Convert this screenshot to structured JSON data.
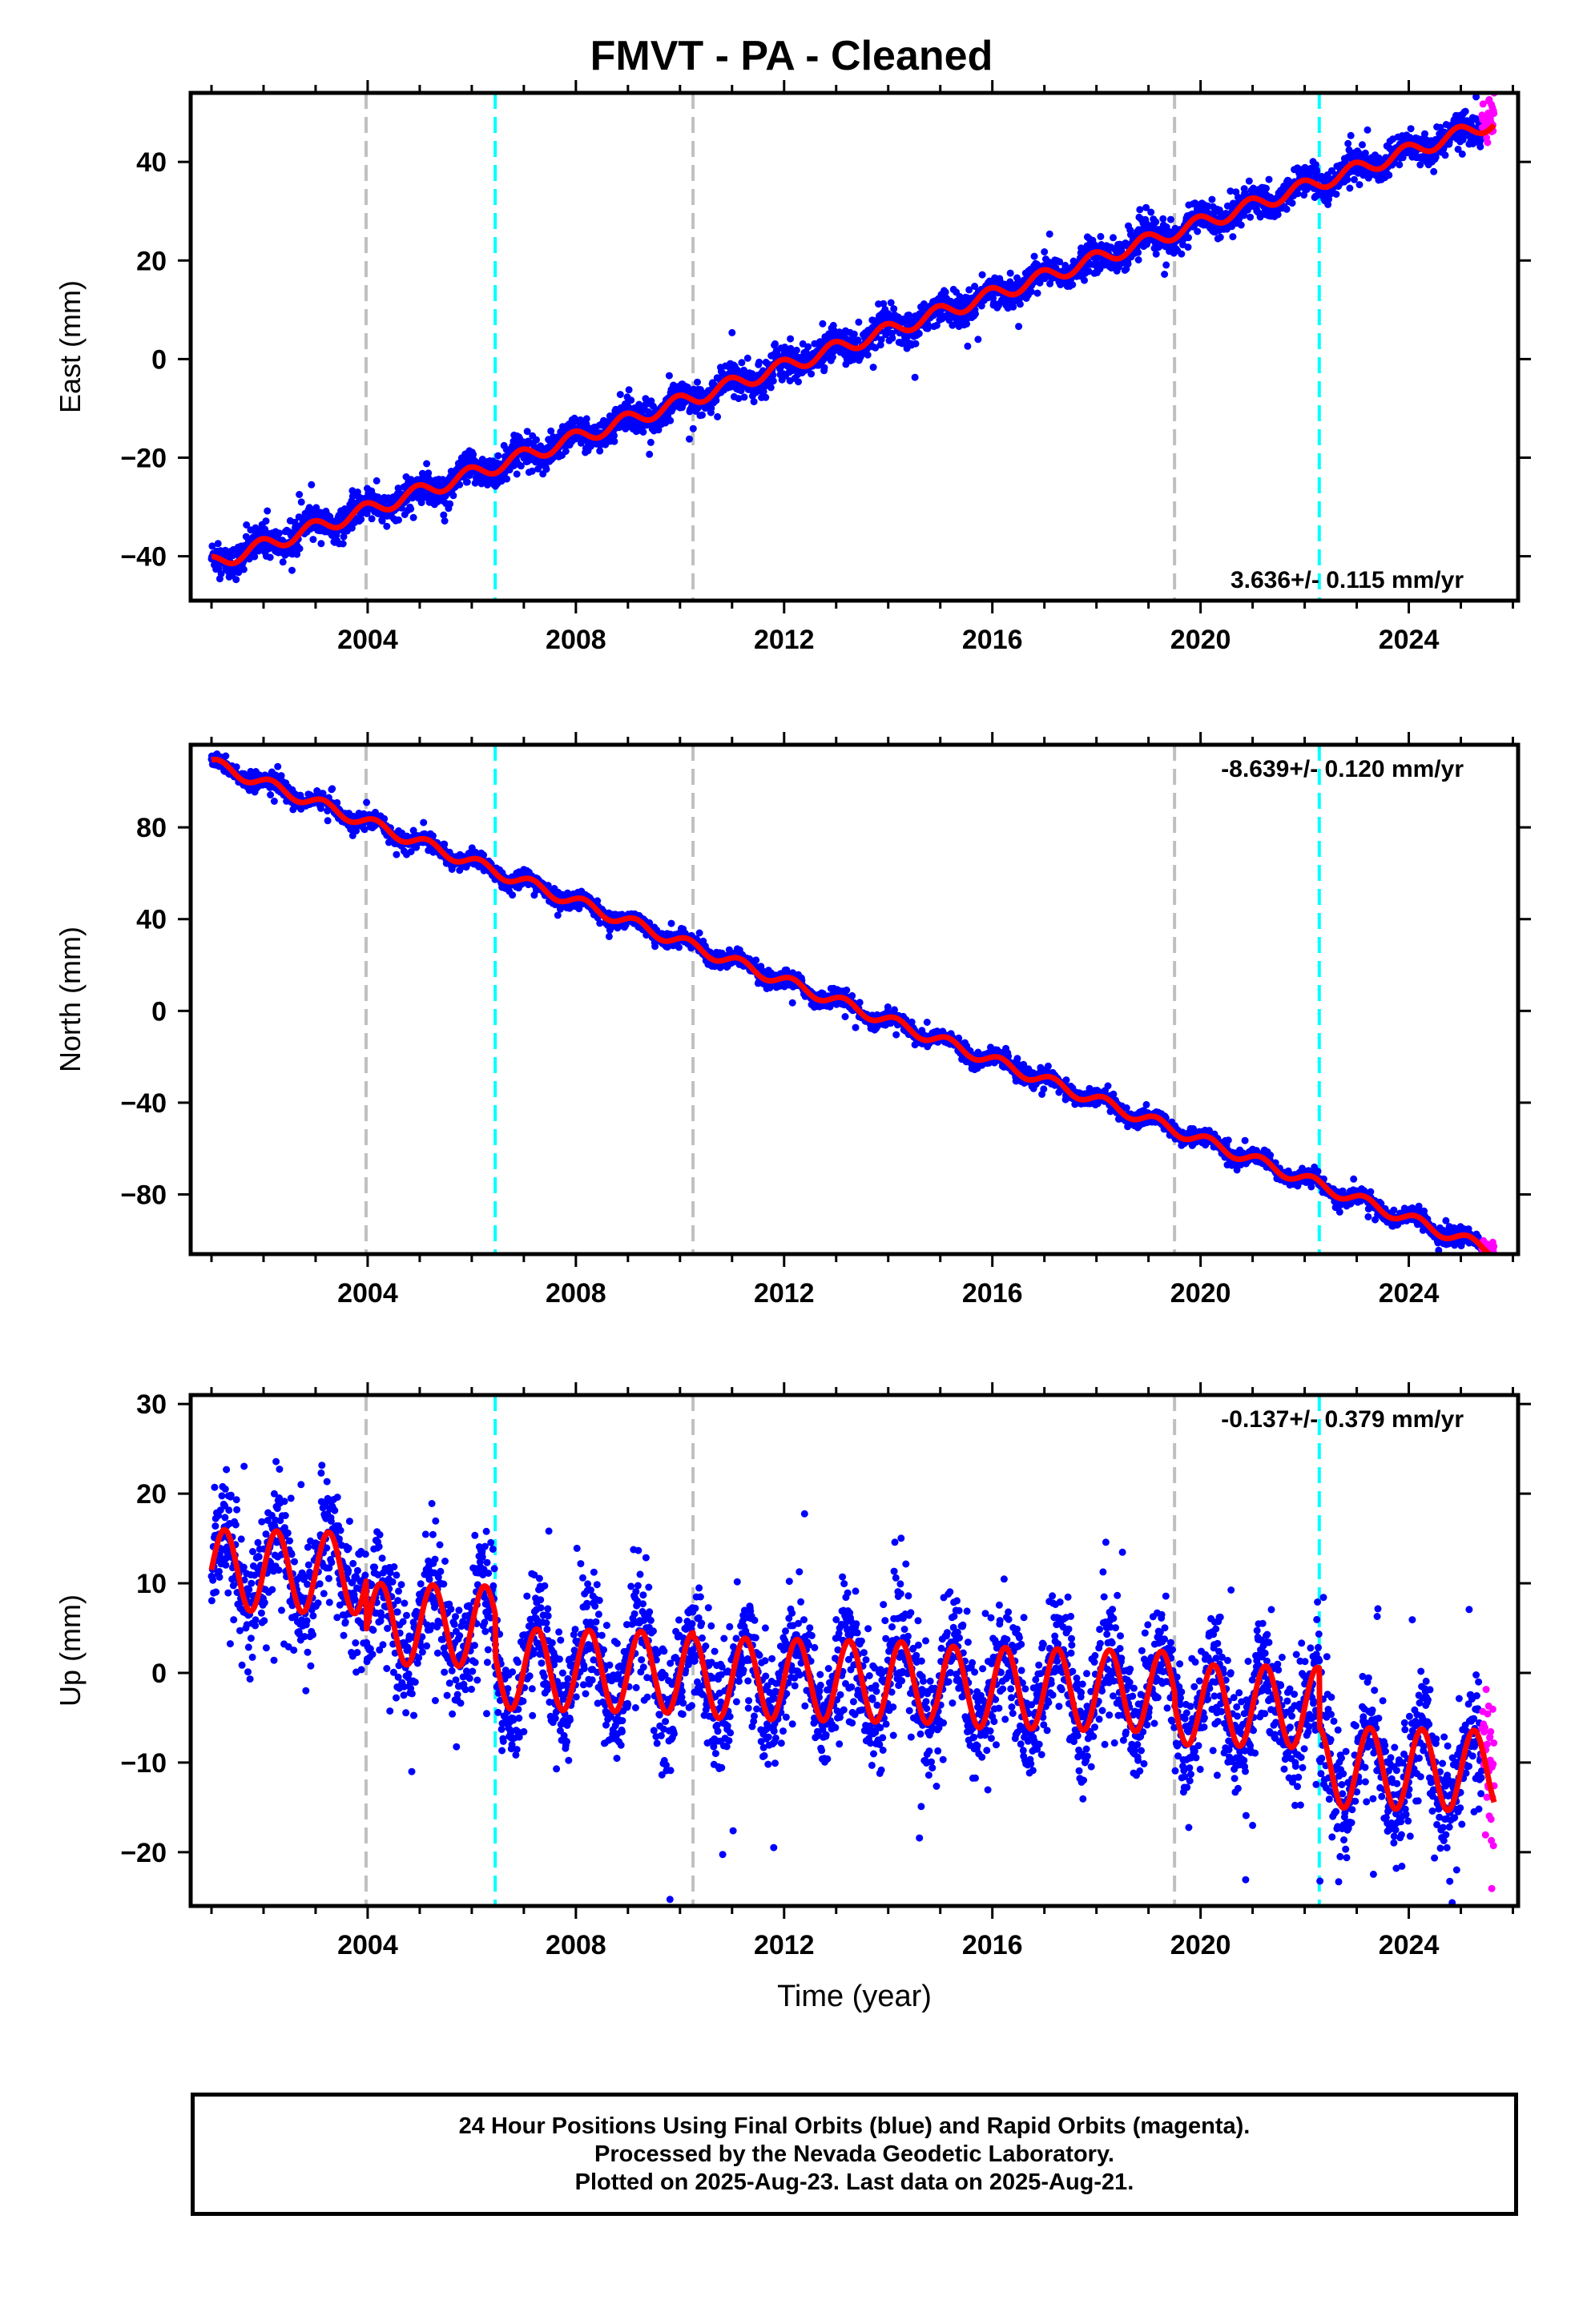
{
  "title": "FMVT  - PA - Cleaned",
  "footer": {
    "line1": "24 Hour Positions Using Final Orbits (blue) and Rapid Orbits (magenta).",
    "line2": "Processed by the Nevada Geodetic Laboratory.",
    "line3": "Plotted on 2025-Aug-23. Last data on 2025-Aug-21."
  },
  "colors": {
    "final": "#0000ff",
    "rapid": "#ff00ff",
    "model": "#ff0000",
    "grey_line": "#c0c0c0",
    "cyan_line": "#00ffff"
  },
  "chart_data": [
    {
      "type": "scatter",
      "name": "east",
      "ylabel": "East (mm)",
      "xlabel": "",
      "xlim": [
        2000.6,
        2026.1
      ],
      "ylim": [
        -49,
        54
      ],
      "xticks": [
        2004,
        2008,
        2012,
        2016,
        2020,
        2024
      ],
      "yticks": [
        -40,
        -20,
        0,
        20,
        40
      ],
      "ytick_labels": [
        "−40",
        "−20",
        "0",
        "20",
        "40"
      ],
      "rate_label": "3.636+/- 0.115 mm/yr",
      "rate_position": "bottom-right",
      "vlines_grey": [
        2003.97,
        2010.25,
        2019.5
      ],
      "vlines_cyan": [
        2006.45,
        2022.28
      ],
      "data_range": [
        2001.0,
        2025.64
      ],
      "rapid_start": 2025.4,
      "model": {
        "x0": 2001.0,
        "y0": -41.5,
        "rate": 3.636,
        "amp": 1.5,
        "phase": 0.3,
        "noise": 1.7,
        "jumps": [],
        "rapid_offset": 2.5
      }
    },
    {
      "type": "scatter",
      "name": "north",
      "ylabel": "North (mm)",
      "xlabel": "",
      "xlim": [
        2000.6,
        2026.1
      ],
      "ylim": [
        -106,
        116
      ],
      "xticks": [
        2004,
        2008,
        2012,
        2016,
        2020,
        2024
      ],
      "yticks": [
        -80,
        -40,
        0,
        40,
        80
      ],
      "ytick_labels": [
        "−80",
        "−40",
        "0",
        "40",
        "80"
      ],
      "rate_label": "-8.639+/- 0.120 mm/yr",
      "rate_position": "top-right",
      "vlines_grey": [
        2003.97,
        2010.25,
        2019.5
      ],
      "vlines_cyan": [
        2006.45,
        2022.28
      ],
      "data_range": [
        2001.0,
        2025.64
      ],
      "rapid_start": 2025.4,
      "model": {
        "x0": 2001.0,
        "y0": 108,
        "rate": -8.639,
        "amp": 2.5,
        "phase": 0.1,
        "noise": 1.8,
        "jumps": [],
        "rapid_offset": 0
      }
    },
    {
      "type": "scatter",
      "name": "up",
      "ylabel": "Up (mm)",
      "xlabel": "Time (year)",
      "xlim": [
        2000.6,
        2026.1
      ],
      "ylim": [
        -26,
        31
      ],
      "xticks": [
        2004,
        2008,
        2012,
        2016,
        2020,
        2024
      ],
      "yticks": [
        -20,
        -10,
        0,
        10,
        20,
        30
      ],
      "ytick_labels": [
        "−20",
        "−10",
        "0",
        "10",
        "20",
        "30"
      ],
      "rate_label": "-0.137+/- 0.379 mm/yr",
      "rate_position": "top-right",
      "vlines_grey": [
        2003.97,
        2010.25,
        2019.5
      ],
      "vlines_cyan": [
        2006.45,
        2022.28
      ],
      "data_range": [
        2001.0,
        2025.64
      ],
      "rapid_start": 2025.4,
      "model": {
        "x0": 2001.0,
        "y0": 11,
        "rate": -0.137,
        "amp": 4.5,
        "phase": 0.0,
        "noise": 3.6,
        "segments": [
          [
            2001.0,
            11.5
          ],
          [
            2003.97,
            5.5
          ],
          [
            2006.45,
            0.5
          ],
          [
            2010.25,
            -0.5
          ],
          [
            2014.9,
            -1.5
          ],
          [
            2019.5,
            -3.5
          ],
          [
            2022.28,
            -10.5
          ]
        ],
        "rapid_offset": 0
      }
    }
  ]
}
